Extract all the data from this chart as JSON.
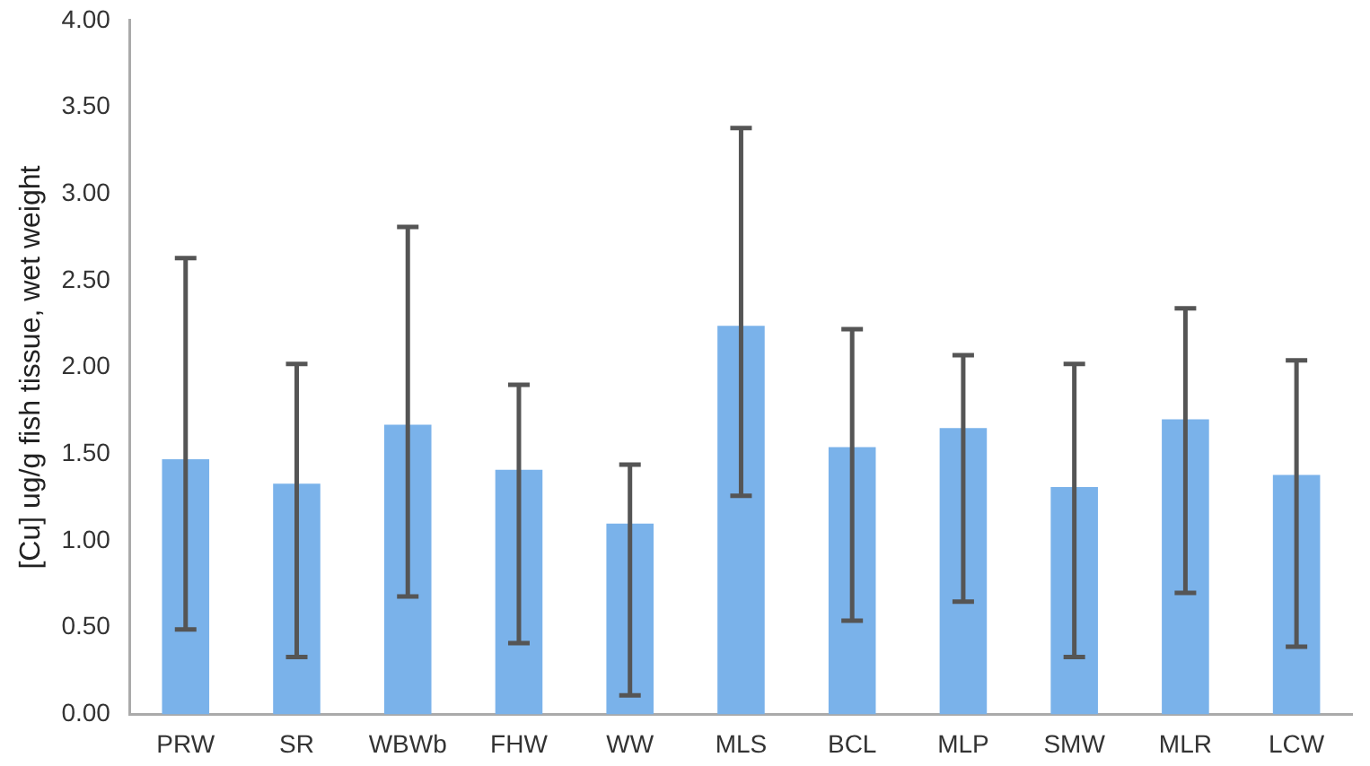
{
  "chart_data": {
    "type": "bar",
    "ylabel": "[Cu] ug/g fish tissue, wet weight",
    "categories": [
      "PRW",
      "SR",
      "WBWb",
      "FHW",
      "WW",
      "MLS",
      "BCL",
      "MLP",
      "SMW",
      "MLR",
      "LCW"
    ],
    "values": [
      1.47,
      1.33,
      1.67,
      1.41,
      1.1,
      2.24,
      1.54,
      1.65,
      1.31,
      1.7,
      1.38
    ],
    "errors": [
      [
        0.49,
        2.63
      ],
      [
        0.33,
        2.02
      ],
      [
        0.68,
        2.81
      ],
      [
        0.41,
        1.9
      ],
      [
        0.11,
        1.44
      ],
      [
        1.26,
        3.38
      ],
      [
        0.54,
        2.22
      ],
      [
        0.65,
        2.07
      ],
      [
        0.33,
        2.02
      ],
      [
        0.7,
        2.34
      ],
      [
        0.39,
        2.04
      ]
    ],
    "color": "#7ab2ea",
    "ylim": [
      0,
      4
    ],
    "yticks": [
      {
        "value": 0,
        "label": "0.00"
      },
      {
        "value": 0.5,
        "label": "0.50"
      },
      {
        "value": 1,
        "label": "1.00"
      },
      {
        "value": 1.5,
        "label": "1.50"
      },
      {
        "value": 2,
        "label": "2.00"
      },
      {
        "value": 2.5,
        "label": "2.50"
      },
      {
        "value": 3,
        "label": "3.00"
      },
      {
        "value": 3.5,
        "label": "3.50"
      },
      {
        "value": 4,
        "label": "4.00"
      }
    ],
    "grid": false,
    "legend": false
  }
}
